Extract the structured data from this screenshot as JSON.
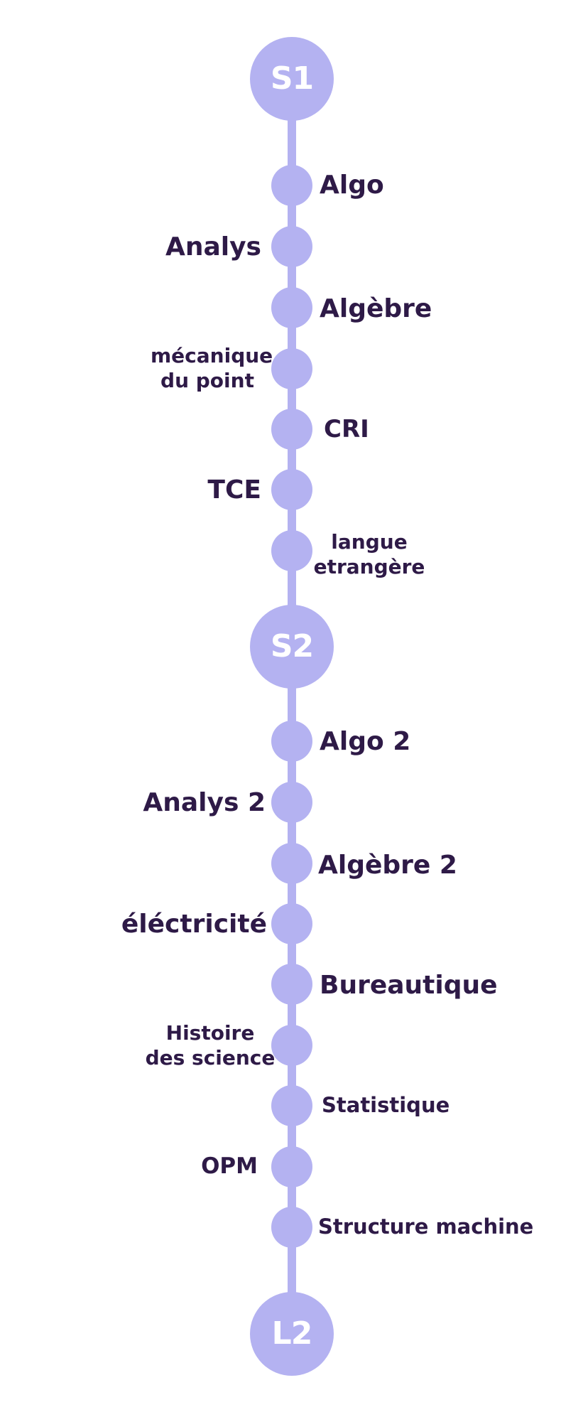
{
  "milestones": {
    "s1": "S1",
    "s2": "S2",
    "l2": "L2"
  },
  "semester1": [
    {
      "label": "Algo"
    },
    {
      "label": "Analys"
    },
    {
      "label": "Algèbre"
    },
    {
      "label_line1": "mécanique",
      "label_line2": "du point"
    },
    {
      "label": "CRI"
    },
    {
      "label": "TCE"
    },
    {
      "label_line1": "langue",
      "label_line2": "etrangère"
    }
  ],
  "semester2": [
    {
      "label": "Algo 2"
    },
    {
      "label": "Analys 2"
    },
    {
      "label": "Algèbre 2"
    },
    {
      "label": "éléctricité"
    },
    {
      "label": "Bureautique"
    },
    {
      "label_line1": "Histoire",
      "label_line2": "des science"
    },
    {
      "label": "Statistique"
    },
    {
      "label": "OPM"
    },
    {
      "label": "Structure machine"
    }
  ],
  "colors": {
    "node": "#b4b2f1",
    "text": "#2e1a47",
    "milestone_text": "#ffffff"
  }
}
